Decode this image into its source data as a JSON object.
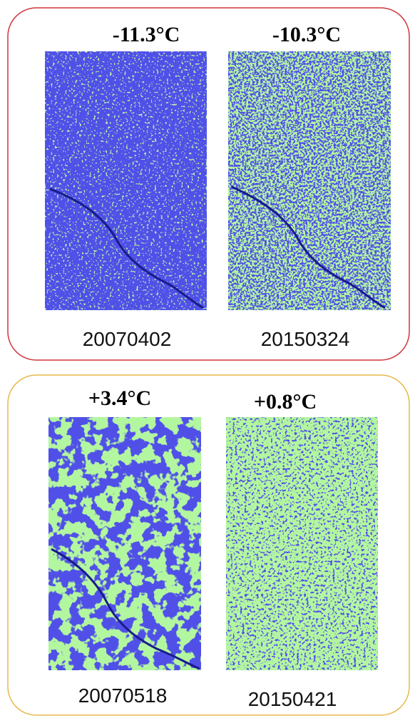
{
  "panels": [
    {
      "images": [
        {
          "temperature": "-11.3°C",
          "date": "20070402"
        },
        {
          "temperature": "-10.3°C",
          "date": "20150324"
        }
      ]
    },
    {
      "images": [
        {
          "temperature": "+3.4°C",
          "date": "20070518"
        },
        {
          "temperature": "+0.8°C",
          "date": "20150421"
        }
      ]
    }
  ]
}
